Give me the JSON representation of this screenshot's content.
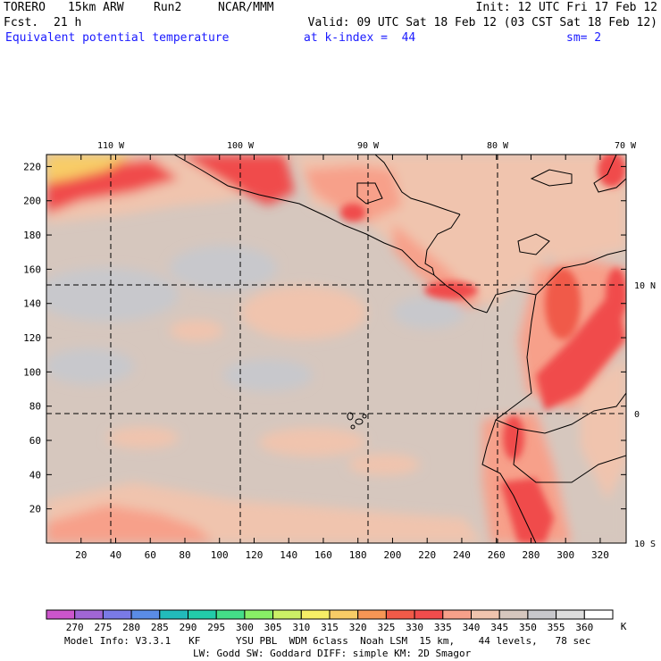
{
  "header": {
    "model": "TORERO",
    "resolution": "15km ARW",
    "run": "Run2",
    "org": "NCAR/MMM",
    "init": "Init: 12 UTC Fri 17 Feb 12",
    "fcst_label": "Fcst.",
    "fcst_hours": "21 h",
    "valid": "Valid: 09 UTC Sat 18 Feb 12 (03 CST Sat 18 Feb 12)",
    "field": "Equivalent potential temperature",
    "level": "at k-index =  44",
    "smoothing": "sm= 2"
  },
  "map": {
    "top_lon_labels": [
      "110 W",
      "100 W",
      "90 W",
      "80 W",
      "70 W"
    ],
    "right_lat_labels": [
      "10 N",
      "0",
      "10 S"
    ],
    "x_ticks": [
      20,
      40,
      60,
      80,
      100,
      120,
      140,
      160,
      180,
      200,
      220,
      240,
      260,
      280,
      300,
      320
    ],
    "y_ticks": [
      20,
      40,
      60,
      80,
      100,
      120,
      140,
      160,
      180,
      200,
      220
    ],
    "x_range": [
      0,
      335
    ],
    "y_range": [
      0,
      227
    ],
    "grid_style": "dashed"
  },
  "colorbar": {
    "levels": [
      "270",
      "275",
      "280",
      "285",
      "290",
      "295",
      "300",
      "305",
      "310",
      "315",
      "320",
      "325",
      "330",
      "335",
      "340",
      "345",
      "350",
      "355",
      "360"
    ],
    "unit": "K",
    "colors": [
      "#cc55cc",
      "#a066d6",
      "#7a7ae6",
      "#5a8ce6",
      "#22bbbb",
      "#22ccaa",
      "#44dd88",
      "#88ee66",
      "#ccf066",
      "#f6ee66",
      "#f8cc66",
      "#f79655",
      "#f05a48",
      "#f04c4c",
      "#f7a08a",
      "#f0c4ae",
      "#d6c7be",
      "#c8c8cc",
      "#dedede",
      "#ffffff"
    ]
  },
  "footer": {
    "line1": "Model Info: V3.3.1   KF      YSU PBL  WDM 6class  Noah LSM  15 km,    44 levels,   78 sec",
    "line2": "LW: Godd SW: Goddard DIFF: simple KM: 2D Smagor"
  }
}
